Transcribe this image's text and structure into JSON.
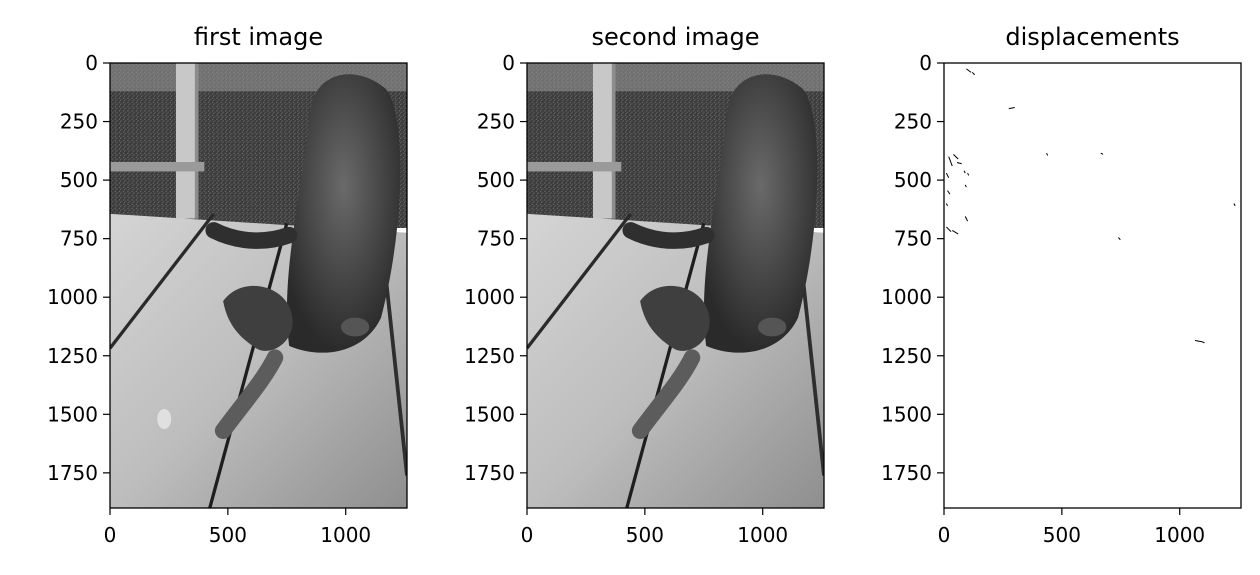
{
  "figure": {
    "background": "#ffffff",
    "axis_color": "#000000"
  },
  "chart_data": [
    {
      "type": "image",
      "title": "first image",
      "image_shape": {
        "width": 1260,
        "height": 1900
      },
      "xlim": [
        0,
        1260
      ],
      "ylim": [
        1900,
        0
      ],
      "x_ticks": [
        0,
        500,
        1000
      ],
      "y_ticks": [
        0,
        250,
        500,
        750,
        1000,
        1250,
        1500,
        1750
      ],
      "x_tick_labels": [
        "0",
        "500",
        "1000"
      ],
      "y_tick_labels": [
        "0",
        "250",
        "500",
        "750",
        "1000",
        "1250",
        "1500",
        "1750"
      ],
      "colormap": "gray",
      "depicts": "photo",
      "photo_frame": "first"
    },
    {
      "type": "image",
      "title": "second image",
      "image_shape": {
        "width": 1260,
        "height": 1900
      },
      "xlim": [
        0,
        1260
      ],
      "ylim": [
        1900,
        0
      ],
      "x_ticks": [
        0,
        500,
        1000
      ],
      "y_ticks": [
        0,
        250,
        500,
        750,
        1000,
        1250,
        1500,
        1750
      ],
      "x_tick_labels": [
        "0",
        "500",
        "1000"
      ],
      "y_tick_labels": [
        "0",
        "250",
        "500",
        "750",
        "1000",
        "1250",
        "1500",
        "1750"
      ],
      "colormap": "gray",
      "depicts": "photo",
      "photo_frame": "second"
    },
    {
      "type": "image",
      "title": "displacements",
      "image_shape": {
        "width": 1260,
        "height": 1900
      },
      "xlim": [
        0,
        1260
      ],
      "ylim": [
        1900,
        0
      ],
      "x_ticks": [
        0,
        500,
        1000
      ],
      "y_ticks": [
        0,
        250,
        500,
        750,
        1000,
        1250,
        1500,
        1750
      ],
      "x_tick_labels": [
        "0",
        "500",
        "1000"
      ],
      "y_tick_labels": [
        "0",
        "250",
        "500",
        "750",
        "1000",
        "1250",
        "1500",
        "1750"
      ],
      "colormap": "gray",
      "depicts": "sparse displacement marks on white",
      "marks": [
        {
          "x": 95,
          "y": 25,
          "x2": 115,
          "y2": 40
        },
        {
          "x": 120,
          "y": 40,
          "x2": 130,
          "y2": 50
        },
        {
          "x": 275,
          "y": 195,
          "x2": 300,
          "y2": 190
        },
        {
          "x": 20,
          "y": 400,
          "x2": 35,
          "y2": 440
        },
        {
          "x": 40,
          "y": 390,
          "x2": 60,
          "y2": 410
        },
        {
          "x": 55,
          "y": 425,
          "x2": 75,
          "y2": 430
        },
        {
          "x": 10,
          "y": 470,
          "x2": 20,
          "y2": 490
        },
        {
          "x": 85,
          "y": 460,
          "x2": 90,
          "y2": 470
        },
        {
          "x": 100,
          "y": 470,
          "x2": 105,
          "y2": 480
        },
        {
          "x": 435,
          "y": 385,
          "x2": 440,
          "y2": 395
        },
        {
          "x": 665,
          "y": 385,
          "x2": 675,
          "y2": 390
        },
        {
          "x": 15,
          "y": 545,
          "x2": 25,
          "y2": 560
        },
        {
          "x": 90,
          "y": 520,
          "x2": 95,
          "y2": 530
        },
        {
          "x": 10,
          "y": 600,
          "x2": 15,
          "y2": 610
        },
        {
          "x": 10,
          "y": 700,
          "x2": 30,
          "y2": 720
        },
        {
          "x": 35,
          "y": 715,
          "x2": 60,
          "y2": 730
        },
        {
          "x": 90,
          "y": 655,
          "x2": 100,
          "y2": 675
        },
        {
          "x": 1230,
          "y": 600,
          "x2": 1235,
          "y2": 610
        },
        {
          "x": 740,
          "y": 745,
          "x2": 748,
          "y2": 755
        },
        {
          "x": 1065,
          "y": 1185,
          "x2": 1095,
          "y2": 1190
        },
        {
          "x": 1095,
          "y": 1190,
          "x2": 1105,
          "y2": 1195
        }
      ]
    }
  ]
}
